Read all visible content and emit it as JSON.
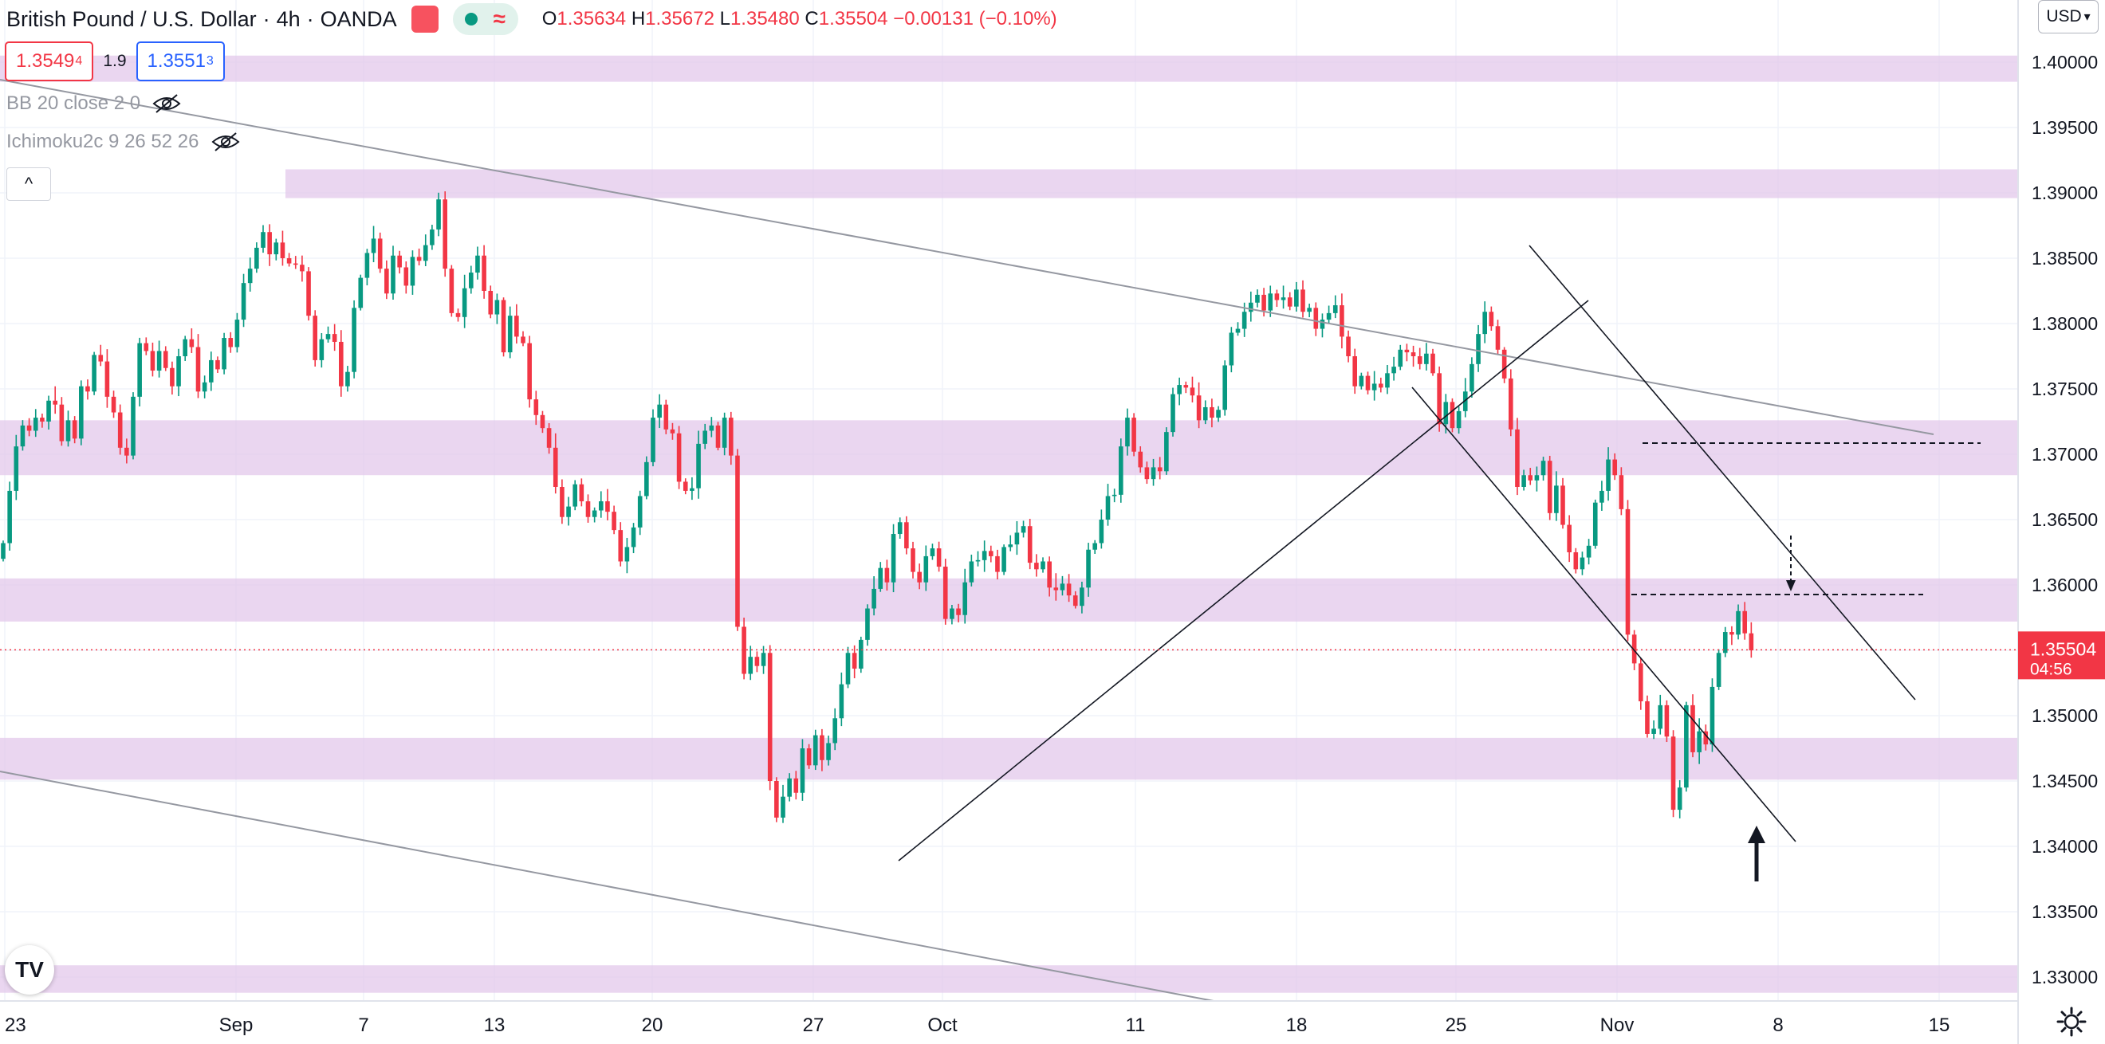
{
  "header": {
    "symbol": "British Pound / U.S. Dollar",
    "interval": "4h",
    "broker": "OANDA",
    "status_icon": "wave-icon",
    "ohlc": {
      "o_label": "O",
      "o": "1.35634",
      "h_label": "H",
      "h": "1.35672",
      "l_label": "L",
      "l": "1.35480",
      "c_label": "C",
      "c": "1.35504",
      "change": "−0.00131 (−0.10%)"
    }
  },
  "trade": {
    "sell_main": "1.3549",
    "sell_sup": "4",
    "spread": "1.9",
    "buy_main": "1.3551",
    "buy_sup": "3"
  },
  "indicators": [
    {
      "label": "BB 20 close 2 0"
    },
    {
      "label": "Ichimoku2c 9 26 52 26"
    }
  ],
  "currency": "USD",
  "logo": "TV",
  "colors": {
    "up": "#089981",
    "down": "#f23645",
    "zone": "#e2c6ea",
    "line": "#131722",
    "grid": "#f0f3fa"
  },
  "chart_data": {
    "type": "candlestick",
    "y_ticks": [
      "1.33000",
      "1.33500",
      "1.34000",
      "1.34500",
      "1.35000",
      "1.35500",
      "1.36000",
      "1.36500",
      "1.37000",
      "1.37500",
      "1.38000",
      "1.38500",
      "1.39000",
      "1.39500",
      "1.40000"
    ],
    "x_ticks": [
      "23",
      "Sep",
      "7",
      "13",
      "20",
      "27",
      "Oct",
      "11",
      "18",
      "25",
      "Nov",
      "8",
      "15"
    ],
    "last_price": "1.35504",
    "countdown": "04:56",
    "zones": [
      {
        "from": 1.3985,
        "to": 1.4005
      },
      {
        "from": 1.3896,
        "to": 1.3918
      },
      {
        "from": 1.3684,
        "to": 1.3726
      },
      {
        "from": 1.3572,
        "to": 1.3605
      },
      {
        "from": 1.3451,
        "to": 1.3483
      },
      {
        "from": 1.3288,
        "to": 1.3309
      }
    ],
    "closes": [
      1.3632,
      1.3672,
      1.3706,
      1.3722,
      1.3718,
      1.3728,
      1.3725,
      1.3741,
      1.3738,
      1.371,
      1.3726,
      1.3712,
      1.3752,
      1.3748,
      1.3776,
      1.3771,
      1.3744,
      1.3732,
      1.3705,
      1.3699,
      1.3744,
      1.3785,
      1.3779,
      1.3764,
      1.3779,
      1.3766,
      1.3752,
      1.3775,
      1.3788,
      1.3782,
      1.3748,
      1.3755,
      1.3772,
      1.3765,
      1.3789,
      1.3782,
      1.3803,
      1.3831,
      1.3842,
      1.3858,
      1.387,
      1.3853,
      1.3862,
      1.385,
      1.3846,
      1.3845,
      1.384,
      1.3806,
      1.3772,
      1.3788,
      1.3792,
      1.3786,
      1.3752,
      1.3763,
      1.3812,
      1.3835,
      1.3854,
      1.3865,
      1.3842,
      1.3823,
      1.3852,
      1.3843,
      1.3829,
      1.3851,
      1.3848,
      1.386,
      1.3872,
      1.3895,
      1.3842,
      1.3808,
      1.3805,
      1.3827,
      1.3839,
      1.3852,
      1.3825,
      1.3807,
      1.3818,
      1.3778,
      1.3806,
      1.379,
      1.3785,
      1.3742,
      1.373,
      1.372,
      1.3705,
      1.3675,
      1.3652,
      1.366,
      1.3677,
      1.3664,
      1.3652,
      1.3657,
      1.3664,
      1.3656,
      1.3642,
      1.3618,
      1.3629,
      1.3644,
      1.3668,
      1.3694,
      1.3728,
      1.3738,
      1.3719,
      1.3716,
      1.3679,
      1.3672,
      1.3674,
      1.3708,
      1.3718,
      1.3722,
      1.3705,
      1.3728,
      1.3699,
      1.3568,
      1.3532,
      1.3545,
      1.3538,
      1.3548,
      1.345,
      1.3422,
      1.3438,
      1.3452,
      1.3441,
      1.3475,
      1.3462,
      1.3485,
      1.3466,
      1.3479,
      1.3498,
      1.3524,
      1.3548,
      1.3536,
      1.3558,
      1.3582,
      1.3597,
      1.3613,
      1.3602,
      1.3639,
      1.3648,
      1.3628,
      1.361,
      1.3602,
      1.3622,
      1.3628,
      1.3614,
      1.3574,
      1.3582,
      1.3577,
      1.3602,
      1.3618,
      1.3619,
      1.3626,
      1.3622,
      1.361,
      1.3629,
      1.3631,
      1.364,
      1.3645,
      1.3617,
      1.3612,
      1.3618,
      1.3598,
      1.3596,
      1.3601,
      1.3592,
      1.3584,
      1.3598,
      1.3627,
      1.3632,
      1.365,
      1.3668,
      1.3669,
      1.3706,
      1.3728,
      1.3702,
      1.369,
      1.3681,
      1.369,
      1.3687,
      1.3717,
      1.3746,
      1.3753,
      1.3751,
      1.3745,
      1.3726,
      1.3736,
      1.3728,
      1.3734,
      1.3768,
      1.3793,
      1.3796,
      1.3809,
      1.3816,
      1.3822,
      1.381,
      1.3823,
      1.3818,
      1.382,
      1.3813,
      1.3826,
      1.3809,
      1.3812,
      1.3796,
      1.3803,
      1.3808,
      1.3814,
      1.379,
      1.3775,
      1.3752,
      1.376,
      1.3749,
      1.3754,
      1.3751,
      1.3762,
      1.3767,
      1.378,
      1.3778,
      1.3775,
      1.3769,
      1.3777,
      1.3762,
      1.3723,
      1.374,
      1.372,
      1.3733,
      1.3748,
      1.3769,
      1.3792,
      1.3809,
      1.3798,
      1.378,
      1.3758,
      1.3719,
      1.3675,
      1.3684,
      1.368,
      1.3684,
      1.3695,
      1.3655,
      1.3676,
      1.3646,
      1.3625,
      1.3612,
      1.3621,
      1.363,
      1.3663,
      1.3672,
      1.3696,
      1.3684,
      1.3658,
      1.3562,
      1.354,
      1.3511,
      1.3486,
      1.349,
      1.3508,
      1.3484,
      1.3428,
      1.3445,
      1.3508,
      1.3472,
      1.3488,
      1.3478,
      1.3522,
      1.3548,
      1.3564,
      1.3562,
      1.358,
      1.3563,
      1.355
    ]
  }
}
